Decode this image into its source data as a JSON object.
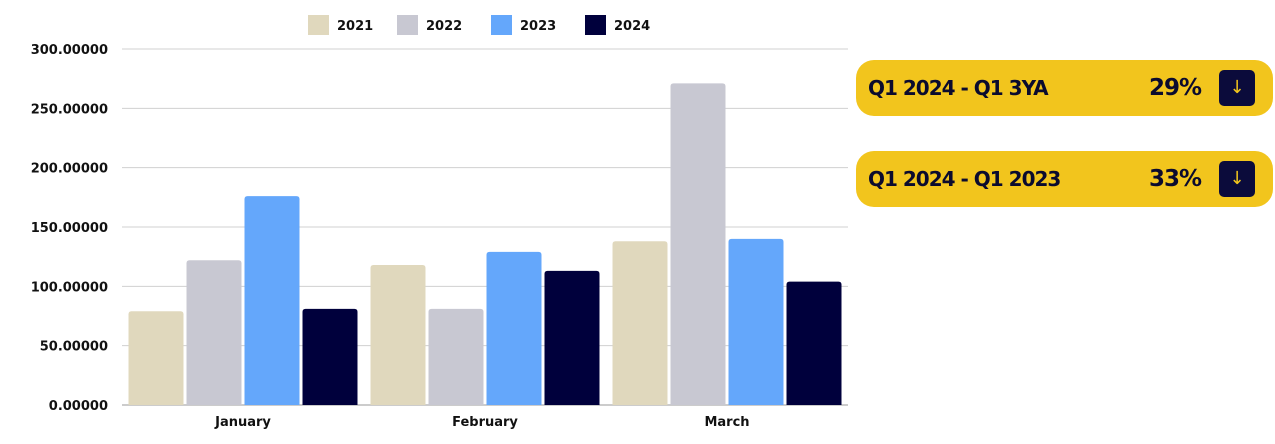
{
  "chart_data": {
    "type": "bar",
    "categories": [
      "January",
      "February",
      "March"
    ],
    "series": [
      {
        "name": "2021",
        "color": "#e0d8bd",
        "values": [
          79,
          118,
          138
        ]
      },
      {
        "name": "2022",
        "color": "#c8c8d2",
        "values": [
          122,
          81,
          271
        ]
      },
      {
        "name": "2023",
        "color": "#64a7fb",
        "values": [
          176,
          129,
          140
        ]
      },
      {
        "name": "2024",
        "color": "#00003c",
        "values": [
          81,
          113,
          104
        ]
      }
    ],
    "ylim": [
      0,
      300
    ],
    "yticks": [
      "0.00000",
      "50.00000",
      "100.00000",
      "150.00000",
      "200.00000",
      "250.00000",
      "300.00000"
    ],
    "grid": true,
    "legend": "top-center"
  },
  "kpis": [
    {
      "label": "Q1 2024 - Q1 3YA",
      "value": "29%",
      "direction": "down",
      "icon": "arrow-down-icon"
    },
    {
      "label": "Q1 2024 - Q1 2023",
      "value": "33%",
      "direction": "down",
      "icon": "arrow-down-icon"
    }
  ],
  "colors": {
    "kpi_bg": "#f2c51d",
    "kpi_arrow_bg": "#0b0b3b",
    "kpi_arrow_fg": "#f2c51d",
    "grid": "#d0d0d0",
    "axis": "#9a9a9a"
  }
}
